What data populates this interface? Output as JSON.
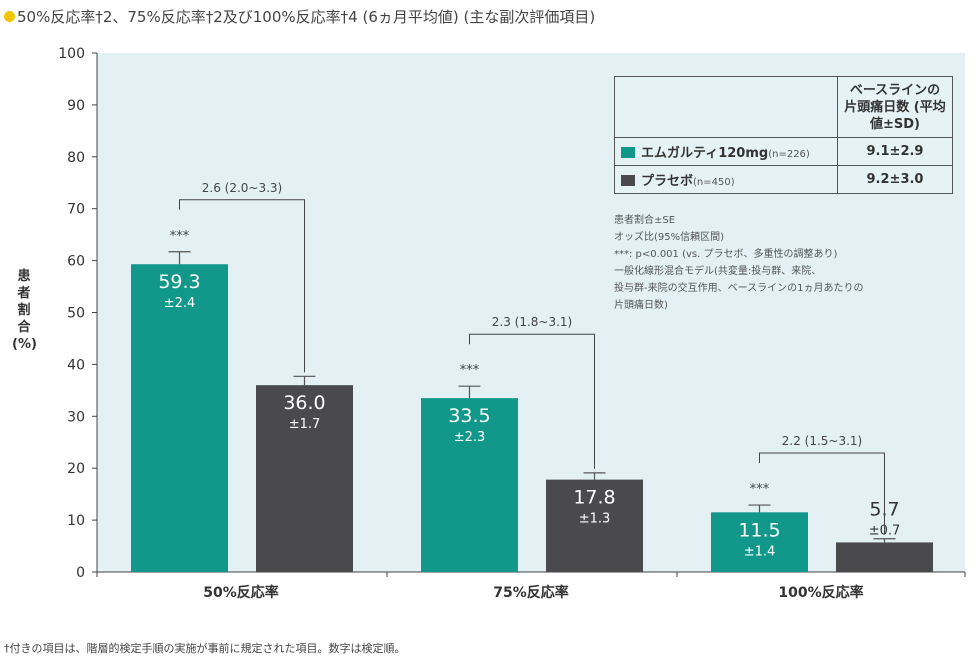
{
  "title": "50%反応率†2、75%反応率†2及び100%反応率†4 (6ヵ月平均値) (主な副次評価項目)",
  "legend": {
    "header": "ベースラインの 片頭痛日数 (平均値±SD)",
    "rows": [
      {
        "name": "エムガルティ120mg",
        "n": "(n=226)",
        "value": "9.1±2.9",
        "color": "#12988a"
      },
      {
        "name": "プラセボ",
        "n": "(n=450)",
        "value": "9.2±3.0",
        "color": "#4a4a4c"
      }
    ]
  },
  "notes": [
    "患者割合±SE",
    "オッズ比(95%信頼区間)",
    "***: p<0.001 (vs. プラセボ、多重性の調整あり)",
    "一般化線形混合モデル(共変量:投与群、来院、",
    "投与群-来院の交互作用、ベースラインの1ヵ月あたりの",
    "片頭痛日数)"
  ],
  "footnote": "†付きの項目は、階層的検定手順の実施が事前に規定された項目。数字は検定順。",
  "chart_data": {
    "type": "bar",
    "ylabel": "患者割合 (%)",
    "ylim": [
      0,
      100
    ],
    "yticks": [
      0,
      10,
      20,
      30,
      40,
      50,
      60,
      70,
      80,
      90,
      100
    ],
    "categories": [
      "50%反応率",
      "75%反応率",
      "100%反応率"
    ],
    "series": [
      {
        "name": "エムガルティ120mg",
        "color": "#12988a",
        "values": [
          59.3,
          33.5,
          11.5
        ],
        "se": [
          2.4,
          2.3,
          1.4
        ],
        "labels": [
          "59.3",
          "33.5",
          "11.5"
        ],
        "se_labels": [
          "±2.4",
          "±2.3",
          "±1.4"
        ],
        "sig": [
          "***",
          "***",
          "***"
        ]
      },
      {
        "name": "プラセボ",
        "color": "#4a4a4c",
        "values": [
          36.0,
          17.8,
          5.7
        ],
        "se": [
          1.7,
          1.3,
          0.7
        ],
        "labels": [
          "36.0",
          "17.8",
          "5.7"
        ],
        "se_labels": [
          "±1.7",
          "±1.3",
          "±0.7"
        ]
      }
    ],
    "odds_ratios": [
      "2.6 (2.0~3.3)",
      "2.3 (1.8~3.1)",
      "2.2 (1.5~3.1)"
    ],
    "background": "#e3f1f4"
  }
}
